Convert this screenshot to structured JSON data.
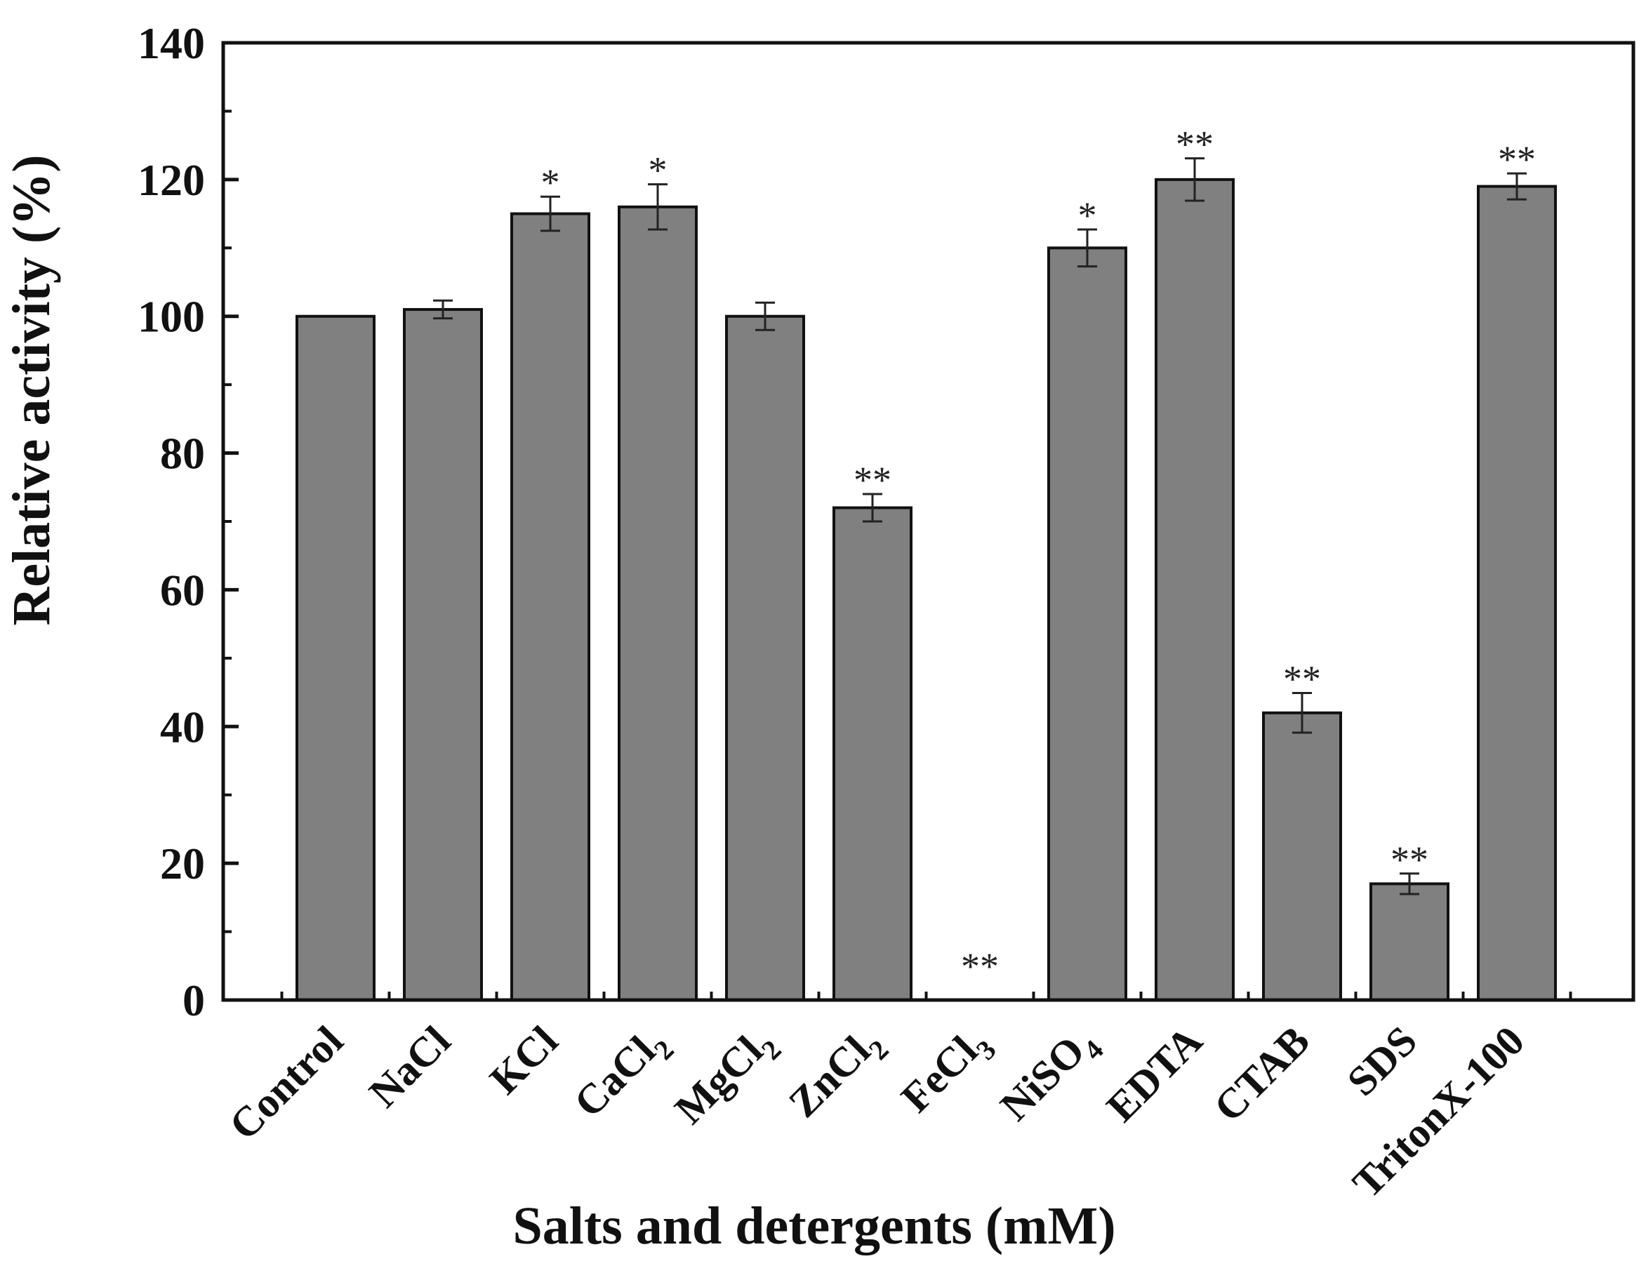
{
  "chart_data": {
    "type": "bar",
    "title": "",
    "xlabel": "Salts and detergents (mM)",
    "ylabel": "Relative activity (%)",
    "ylim": [
      0,
      140
    ],
    "yticks": [
      "0",
      "20",
      "40",
      "60",
      "80",
      "100",
      "120",
      "140"
    ],
    "grid": false,
    "legend": "none",
    "bar_color": "#808080",
    "categories": [
      {
        "base": "Control",
        "sub": ""
      },
      {
        "base": "NaCl",
        "sub": ""
      },
      {
        "base": "KCl",
        "sub": ""
      },
      {
        "base": "CaCl",
        "sub": "2"
      },
      {
        "base": "MgCl",
        "sub": "2"
      },
      {
        "base": "ZnCl",
        "sub": "2"
      },
      {
        "base": "FeCl",
        "sub": "3"
      },
      {
        "base": "NiSO",
        "sub": "4"
      },
      {
        "base": "EDTA",
        "sub": ""
      },
      {
        "base": "CTAB",
        "sub": ""
      },
      {
        "base": "SDS",
        "sub": ""
      },
      {
        "base": "TritonX-100",
        "sub": ""
      }
    ],
    "values": [
      100,
      101,
      115,
      116,
      100,
      72,
      0,
      110,
      120,
      42,
      17,
      119
    ],
    "errors": [
      0,
      1.3,
      2.5,
      3.3,
      2.0,
      2.0,
      0,
      2.7,
      3.1,
      2.9,
      1.5,
      1.9
    ],
    "significance": [
      "",
      "",
      "*",
      "*",
      "",
      "**",
      "**",
      "*",
      "**",
      "**",
      "**",
      "**"
    ]
  }
}
